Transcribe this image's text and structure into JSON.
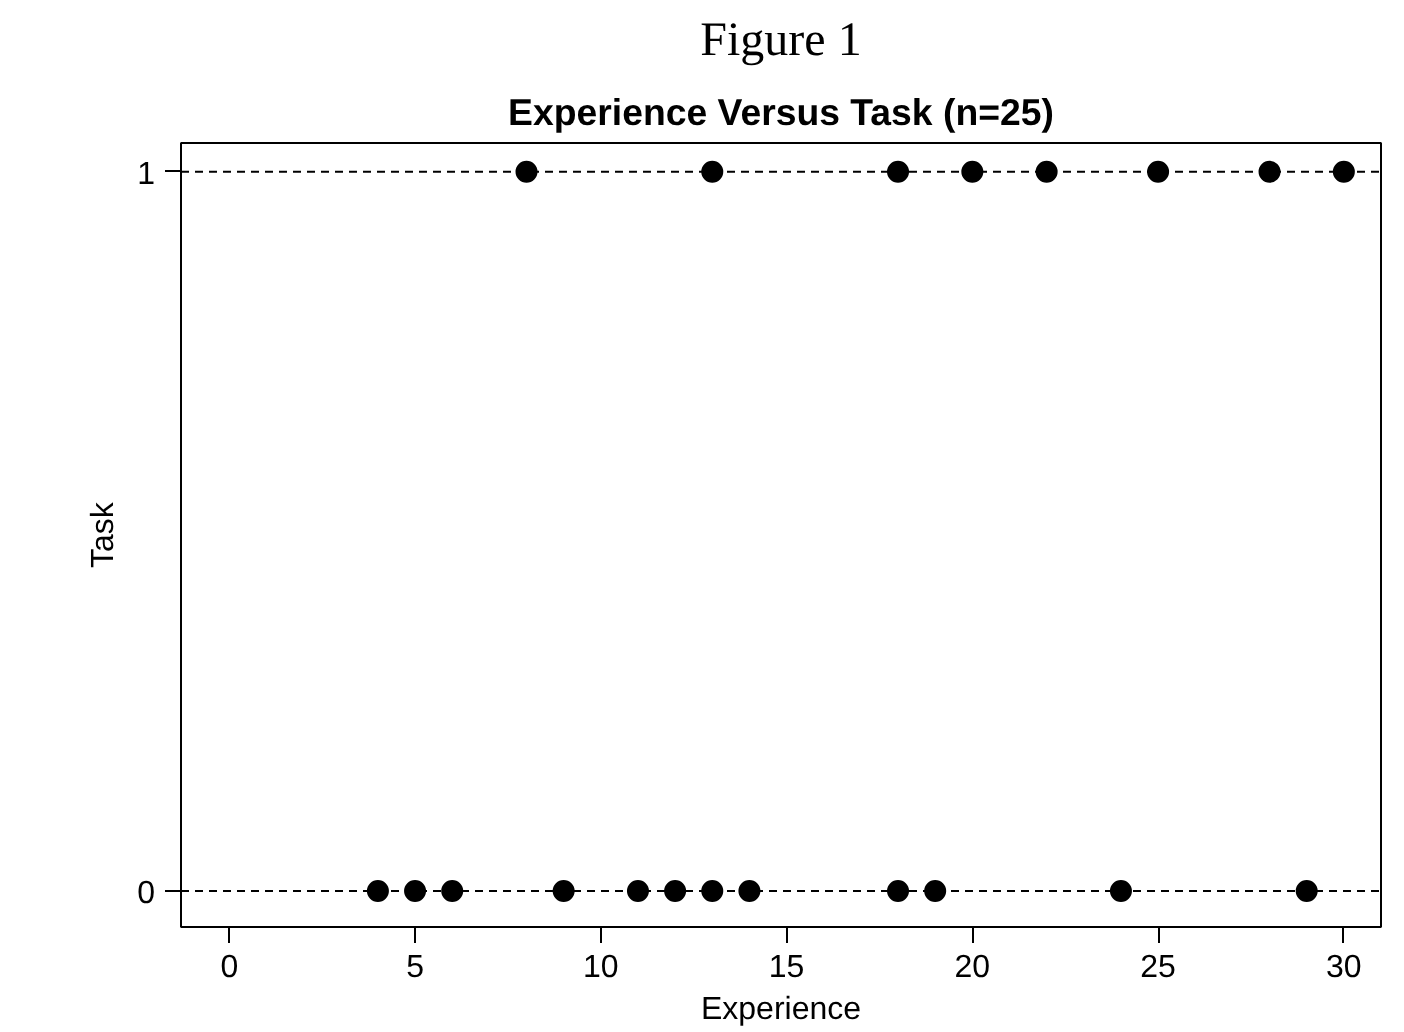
{
  "chart_data": {
    "type": "scatter",
    "title": "Experience Versus Task (n=25)",
    "annotations": [
      "Figure 1"
    ],
    "xlabel": "Experience",
    "ylabel": "Task",
    "series": [
      {
        "color": "#000000",
        "x": [
          8,
          13,
          18,
          20,
          22,
          25,
          28,
          30,
          4,
          5,
          6,
          9,
          11,
          12,
          13,
          14,
          18,
          19,
          24,
          29
        ],
        "values": [
          1,
          1,
          1,
          1,
          1,
          1,
          1,
          1,
          0,
          0,
          0,
          0,
          0,
          0,
          0,
          0,
          0,
          0,
          0,
          0
        ]
      }
    ],
    "xlim": [
      -1.3,
      31
    ],
    "ylim": [
      -0.05,
      1.04
    ],
    "xticks": [
      0,
      5,
      10,
      15,
      20,
      25,
      30
    ],
    "yticks": [
      0,
      1
    ],
    "ref_lines": [
      {
        "axis": "y",
        "value": 0,
        "line_style": "dashed",
        "color": "#000000"
      },
      {
        "axis": "y",
        "value": 1,
        "line_style": "dashed",
        "color": "#000000"
      }
    ],
    "marker": "circle",
    "grid": false
  }
}
